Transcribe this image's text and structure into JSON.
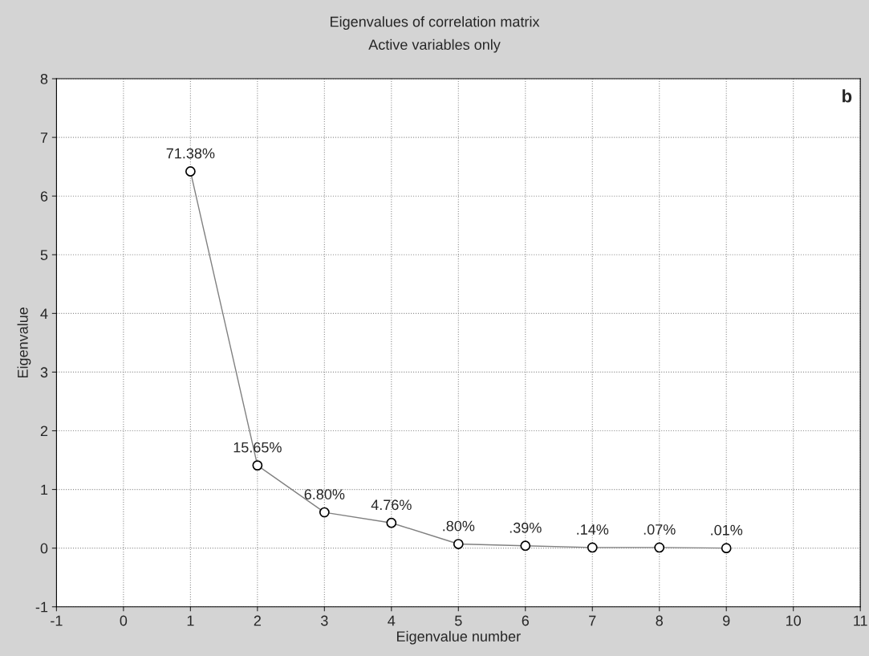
{
  "chart_data": {
    "type": "line",
    "title": "Eigenvalues of correlation matrix",
    "subtitle": "Active variables only",
    "xlabel": "Eigenvalue number",
    "ylabel": "Eigenvalue",
    "x": [
      1,
      2,
      3,
      4,
      5,
      6,
      7,
      8,
      9
    ],
    "series": [
      {
        "color": "#808080",
        "values": [
          6.42,
          1.41,
          0.61,
          0.43,
          0.07,
          0.04,
          0.01,
          0.01,
          0.0
        ]
      }
    ],
    "xlim": [
      -1,
      11
    ],
    "xticks": [
      -1,
      0,
      1,
      2,
      3,
      4,
      5,
      6,
      7,
      8,
      9,
      10,
      11
    ],
    "ylim": [
      -1,
      8
    ],
    "yticks": [
      -1,
      0,
      1,
      2,
      3,
      4,
      5,
      6,
      7,
      8
    ],
    "grid": true,
    "marker": "circle",
    "line_style": "solid",
    "legend": false,
    "annotations": [
      "b",
      {
        "text": "71.38%",
        "x": 1,
        "y": 6.42
      },
      {
        "text": "15.65%",
        "x": 2,
        "y": 1.41
      },
      {
        "text": "6.80%",
        "x": 3,
        "y": 0.61
      },
      {
        "text": "4.76%",
        "x": 4,
        "y": 0.43
      },
      {
        "text": ".80%",
        "x": 5,
        "y": 0.07
      },
      {
        "text": ".39%",
        "x": 6,
        "y": 0.04
      },
      {
        "text": ".14%",
        "x": 7,
        "y": 0.01
      },
      {
        "text": ".07%",
        "x": 8,
        "y": 0.01
      },
      {
        "text": ".01%",
        "x": 9,
        "y": 0.0
      }
    ]
  }
}
